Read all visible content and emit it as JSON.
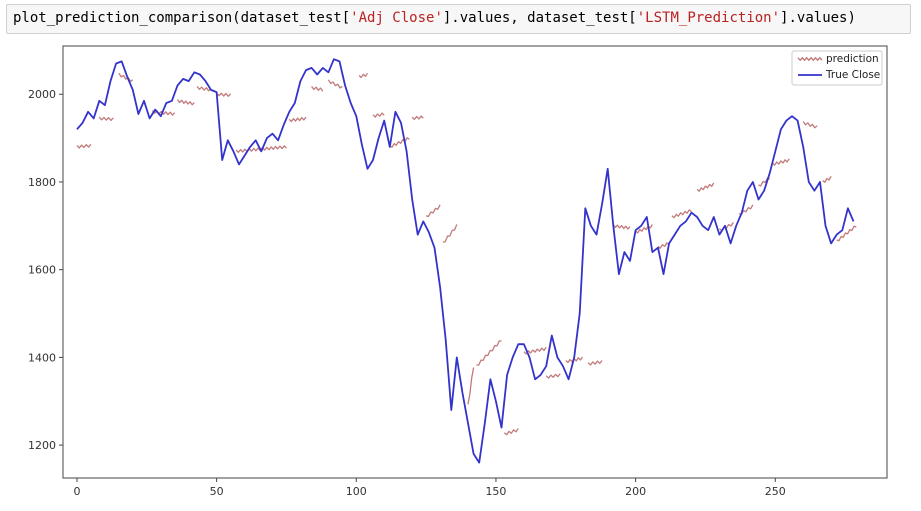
{
  "code": {
    "prefix": "plot_prediction_comparison(dataset_test[",
    "arg1": "'Adj Close'",
    "mid": "].values, dataset_test[",
    "arg2": "'LSTM_Prediction'",
    "suffix": "].values)"
  },
  "chart_data": {
    "type": "line",
    "title": "",
    "xlabel": "",
    "ylabel": "",
    "xlim": [
      -5,
      290
    ],
    "ylim": [
      1125,
      2110
    ],
    "xticks": [
      0,
      50,
      100,
      150,
      200,
      250
    ],
    "yticks": [
      1200,
      1400,
      1600,
      1800,
      2000
    ],
    "legend": {
      "position": "top-right"
    },
    "series": [
      {
        "name": "True Close",
        "color": "#3333cc",
        "x": [
          0,
          2,
          4,
          6,
          8,
          10,
          12,
          14,
          16,
          18,
          20,
          22,
          24,
          26,
          28,
          30,
          32,
          34,
          36,
          38,
          40,
          42,
          44,
          46,
          48,
          50,
          52,
          54,
          56,
          58,
          60,
          62,
          64,
          66,
          68,
          70,
          72,
          74,
          76,
          78,
          80,
          82,
          84,
          86,
          88,
          90,
          92,
          94,
          96,
          98,
          100,
          102,
          104,
          106,
          108,
          110,
          112,
          114,
          116,
          118,
          120,
          122,
          124,
          126,
          128,
          130,
          132,
          134,
          136,
          138,
          140,
          142,
          144,
          146,
          148,
          150,
          152,
          154,
          156,
          158,
          160,
          162,
          164,
          166,
          168,
          170,
          172,
          174,
          176,
          178,
          180,
          182,
          184,
          186,
          188,
          190,
          192,
          194,
          196,
          198,
          200,
          202,
          204,
          206,
          208,
          210,
          212,
          214,
          216,
          218,
          220,
          222,
          224,
          226,
          228,
          230,
          232,
          234,
          236,
          238,
          240,
          242,
          244,
          246,
          248,
          250,
          252,
          254,
          256,
          258,
          260,
          262,
          264,
          266,
          268,
          270,
          272,
          274,
          276,
          278
        ],
        "y": [
          1920,
          1935,
          1960,
          1945,
          1985,
          1975,
          2030,
          2070,
          2075,
          2040,
          2010,
          1955,
          1985,
          1945,
          1965,
          1950,
          1980,
          1985,
          2020,
          2035,
          2030,
          2050,
          2045,
          2030,
          2010,
          2005,
          1850,
          1895,
          1870,
          1840,
          1860,
          1880,
          1895,
          1870,
          1900,
          1910,
          1895,
          1930,
          1960,
          1980,
          2030,
          2055,
          2060,
          2045,
          2060,
          2050,
          2080,
          2075,
          2020,
          1980,
          1950,
          1885,
          1830,
          1850,
          1900,
          1940,
          1880,
          1960,
          1935,
          1870,
          1760,
          1680,
          1710,
          1685,
          1650,
          1560,
          1440,
          1280,
          1400,
          1320,
          1250,
          1180,
          1160,
          1250,
          1350,
          1300,
          1240,
          1360,
          1400,
          1430,
          1430,
          1400,
          1350,
          1360,
          1380,
          1450,
          1400,
          1380,
          1350,
          1400,
          1500,
          1740,
          1700,
          1680,
          1750,
          1830,
          1700,
          1590,
          1640,
          1620,
          1690,
          1700,
          1720,
          1640,
          1650,
          1590,
          1660,
          1680,
          1700,
          1710,
          1730,
          1720,
          1700,
          1690,
          1720,
          1680,
          1700,
          1660,
          1700,
          1730,
          1780,
          1800,
          1760,
          1780,
          1820,
          1870,
          1920,
          1940,
          1950,
          1940,
          1880,
          1800,
          1780,
          1800,
          1700,
          1660,
          1680,
          1690,
          1740,
          1710
        ]
      },
      {
        "name": "prediction",
        "color": "#c27a7a",
        "segments": [
          {
            "x": [
              0,
              5
            ],
            "y": [
              1880,
              1883
            ]
          },
          {
            "x": [
              8,
              13
            ],
            "y": [
              1945,
              1943
            ]
          },
          {
            "x": [
              15,
              20
            ],
            "y": [
              2045,
              2030
            ]
          },
          {
            "x": [
              27,
              35
            ],
            "y": [
              1960,
              1955
            ]
          },
          {
            "x": [
              36,
              42
            ],
            "y": [
              1985,
              1978
            ]
          },
          {
            "x": [
              43,
              48
            ],
            "y": [
              2015,
              2010
            ]
          },
          {
            "x": [
              50,
              55
            ],
            "y": [
              2000,
              1998
            ]
          },
          {
            "x": [
              57,
              75
            ],
            "y": [
              1870,
              1880
            ]
          },
          {
            "x": [
              76,
              82
            ],
            "y": [
              1940,
              1945
            ]
          },
          {
            "x": [
              84,
              88
            ],
            "y": [
              2015,
              2010
            ]
          },
          {
            "x": [
              90,
              95
            ],
            "y": [
              2030,
              2015
            ]
          },
          {
            "x": [
              101,
              104
            ],
            "y": [
              2040,
              2045
            ]
          },
          {
            "x": [
              106,
              110
            ],
            "y": [
              1950,
              1955
            ]
          },
          {
            "x": [
              112,
              119
            ],
            "y": [
              1880,
              1900
            ]
          },
          {
            "x": [
              120,
              124
            ],
            "y": [
              1945,
              1948
            ]
          },
          {
            "x": [
              125,
              130
            ],
            "y": [
              1720,
              1745
            ]
          },
          {
            "x": [
              131,
              136
            ],
            "y": [
              1660,
              1700
            ]
          },
          {
            "x": [
              140,
              142
            ],
            "y": [
              1290,
              1380
            ]
          },
          {
            "x": [
              143,
              152
            ],
            "y": [
              1380,
              1440
            ]
          },
          {
            "x": [
              153,
              158
            ],
            "y": [
              1225,
              1235
            ]
          },
          {
            "x": [
              160,
              168
            ],
            "y": [
              1410,
              1420
            ]
          },
          {
            "x": [
              168,
              173
            ],
            "y": [
              1355,
              1360
            ]
          },
          {
            "x": [
              175,
              181
            ],
            "y": [
              1390,
              1398
            ]
          },
          {
            "x": [
              183,
              188
            ],
            "y": [
              1385,
              1390
            ]
          },
          {
            "x": [
              192,
              198
            ],
            "y": [
              1700,
              1695
            ]
          },
          {
            "x": [
              200,
              206
            ],
            "y": [
              1685,
              1700
            ]
          },
          {
            "x": [
              208,
              212
            ],
            "y": [
              1650,
              1660
            ]
          },
          {
            "x": [
              213,
              220
            ],
            "y": [
              1720,
              1735
            ]
          },
          {
            "x": [
              222,
              228
            ],
            "y": [
              1780,
              1795
            ]
          },
          {
            "x": [
              230,
              235
            ],
            "y": [
              1690,
              1705
            ]
          },
          {
            "x": [
              237,
              242
            ],
            "y": [
              1725,
              1745
            ]
          },
          {
            "x": [
              244,
              248
            ],
            "y": [
              1790,
              1810
            ]
          },
          {
            "x": [
              249,
              255
            ],
            "y": [
              1840,
              1850
            ]
          },
          {
            "x": [
              260,
              265
            ],
            "y": [
              1935,
              1925
            ]
          },
          {
            "x": [
              267,
              270
            ],
            "y": [
              1800,
              1810
            ]
          },
          {
            "x": [
              272,
              279
            ],
            "y": [
              1665,
              1700
            ]
          }
        ]
      }
    ]
  }
}
